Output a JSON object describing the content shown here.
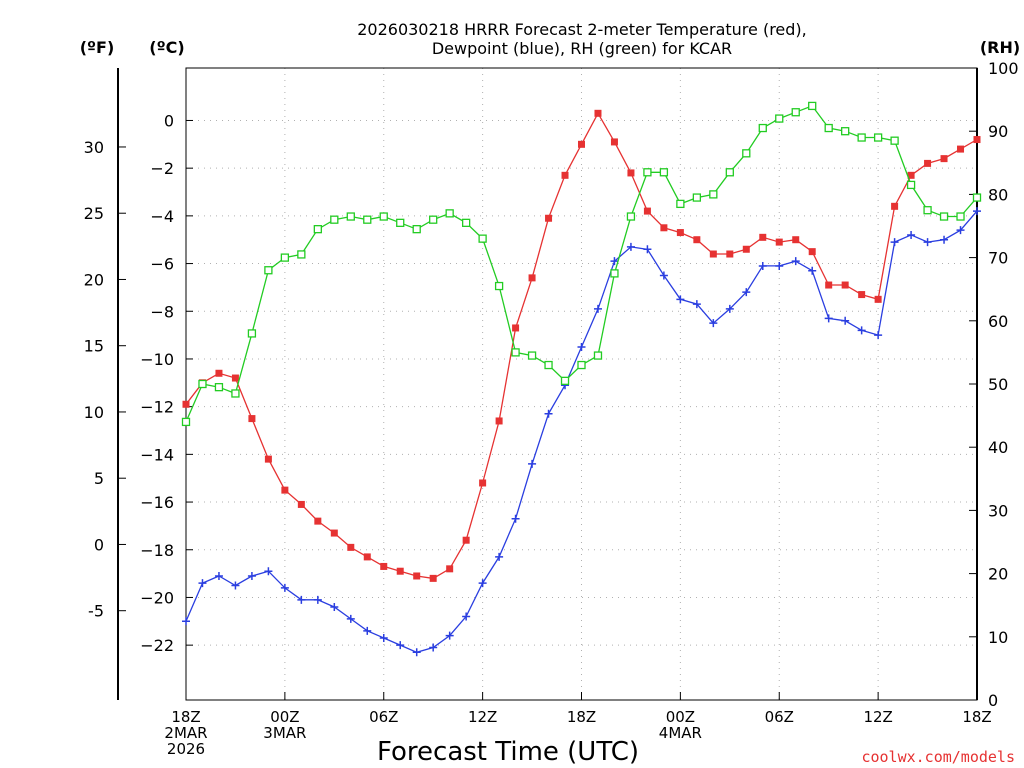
{
  "chart_data": {
    "type": "line",
    "title_line1": "2026030218 HRRR Forecast 2-meter Temperature (red),",
    "title_line2": "Dewpoint (blue), RH (green) for KCAR",
    "unit_f": "(ºF)",
    "unit_c": "(ºC)",
    "unit_rh": "(RH)",
    "xlabel": "Forecast Time (UTC)",
    "credit": "coolwx.com/models",
    "x_range": [
      0,
      48
    ],
    "c_range": [
      -24.3,
      2.2
    ],
    "rh_range": [
      0,
      100
    ],
    "f_ticks": [
      30,
      25,
      20,
      15,
      10,
      5,
      0,
      -5
    ],
    "c_ticks": [
      0,
      -2,
      -4,
      -6,
      -8,
      -10,
      -12,
      -14,
      -16,
      -18,
      -20,
      -22
    ],
    "rh_ticks": [
      100,
      90,
      80,
      70,
      60,
      50,
      40,
      30,
      20,
      10,
      0
    ],
    "x_ticks": [
      {
        "x": 0,
        "lines": [
          "18Z",
          "2MAR",
          "2026"
        ]
      },
      {
        "x": 6,
        "lines": [
          "00Z",
          "3MAR"
        ]
      },
      {
        "x": 12,
        "lines": [
          "06Z"
        ]
      },
      {
        "x": 18,
        "lines": [
          "12Z"
        ]
      },
      {
        "x": 24,
        "lines": [
          "18Z"
        ]
      },
      {
        "x": 30,
        "lines": [
          "00Z",
          "4MAR"
        ]
      },
      {
        "x": 36,
        "lines": [
          "06Z"
        ]
      },
      {
        "x": 42,
        "lines": [
          "12Z"
        ]
      },
      {
        "x": 48,
        "lines": [
          "18Z"
        ]
      }
    ],
    "series": [
      {
        "name": "2-meter Temperature",
        "axis": "c",
        "color": "#e63232",
        "marker": "filled-square",
        "values": [
          -11.9,
          -11.0,
          -10.6,
          -10.8,
          -12.5,
          -14.2,
          -15.5,
          -16.1,
          -16.8,
          -17.3,
          -17.9,
          -18.3,
          -18.7,
          -18.9,
          -19.1,
          -19.2,
          -18.8,
          -17.6,
          -15.2,
          -12.6,
          -8.7,
          -6.6,
          -4.1,
          -2.3,
          -1.0,
          0.3,
          -0.9,
          -2.2,
          -3.8,
          -4.5,
          -4.7,
          -5.0,
          -5.6,
          -5.6,
          -5.4,
          -4.9,
          -5.1,
          -5.0,
          -5.5,
          -6.9,
          -6.9,
          -7.3,
          -7.5,
          -3.6,
          -2.3,
          -1.8,
          -1.6,
          -1.2,
          -0.8
        ]
      },
      {
        "name": "Dewpoint",
        "axis": "c",
        "color": "#2a3ee0",
        "marker": "plus",
        "values": [
          -21.0,
          -19.4,
          -19.1,
          -19.5,
          -19.1,
          -18.9,
          -19.6,
          -20.1,
          -20.1,
          -20.4,
          -20.9,
          -21.4,
          -21.7,
          -22.0,
          -22.3,
          -22.1,
          -21.6,
          -20.8,
          -19.4,
          -18.3,
          -16.7,
          -14.4,
          -12.3,
          -11.1,
          -9.5,
          -7.9,
          -5.9,
          -5.3,
          -5.4,
          -6.5,
          -7.5,
          -7.7,
          -8.5,
          -7.9,
          -7.2,
          -6.1,
          -6.1,
          -5.9,
          -6.3,
          -8.3,
          -8.4,
          -8.8,
          -9.0,
          -5.1,
          -4.8,
          -5.1,
          -5.0,
          -4.6,
          -3.8
        ]
      },
      {
        "name": "RH",
        "axis": "rh",
        "color": "#22cc22",
        "marker": "open-square",
        "values": [
          44,
          50,
          49.5,
          48.5,
          58,
          68,
          70,
          70.5,
          74.5,
          76,
          76.5,
          76,
          76.5,
          75.5,
          74.5,
          76,
          77,
          75.5,
          73,
          65.5,
          55,
          54.5,
          53,
          50.5,
          53,
          54.5,
          67.5,
          76.5,
          83.5,
          83.5,
          78.5,
          79.5,
          80,
          83.5,
          86.5,
          90.5,
          92,
          93,
          94,
          90.5,
          90,
          89,
          89,
          88.5,
          81.5,
          77.5,
          76.5,
          76.5,
          79.5
        ]
      }
    ]
  }
}
